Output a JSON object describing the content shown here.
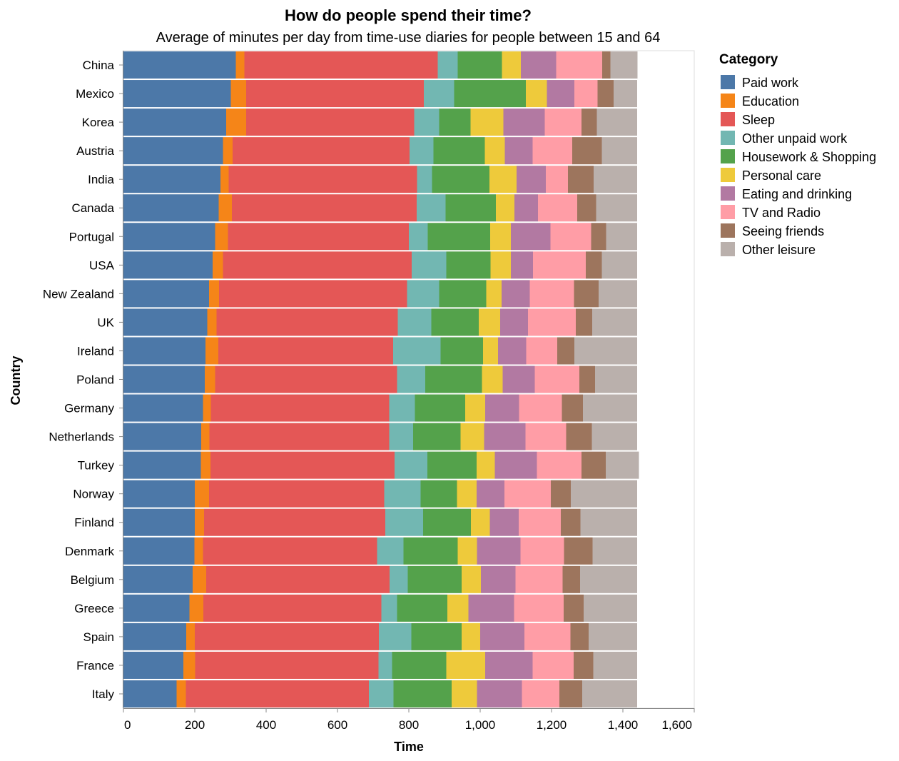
{
  "chart_data": {
    "type": "bar",
    "orientation": "horizontal",
    "stacked": true,
    "title": "How do people spend their time?",
    "subtitle": "Average of minutes per day from time-use diaries for people between 15 and 64",
    "xlabel": "Time",
    "ylabel": "Country",
    "xlim": [
      0,
      1600
    ],
    "x_ticks": [
      0,
      200,
      400,
      600,
      800,
      1000,
      1200,
      1400,
      1600
    ],
    "x_tick_labels": [
      "0",
      "200",
      "400",
      "600",
      "800",
      "1,000",
      "1,200",
      "1,400",
      "1,600"
    ],
    "grid": false,
    "legend": {
      "title": "Category",
      "position": "right"
    },
    "categories": [
      "China",
      "Mexico",
      "Korea",
      "Austria",
      "India",
      "Canada",
      "Portugal",
      "USA",
      "New Zealand",
      "UK",
      "Ireland",
      "Poland",
      "Germany",
      "Netherlands",
      "Turkey",
      "Norway",
      "Finland",
      "Denmark",
      "Belgium",
      "Greece",
      "Spain",
      "France",
      "Italy"
    ],
    "series": [
      {
        "name": "Paid work",
        "color": "#4c78a8",
        "values": [
          315,
          301,
          288,
          279,
          272,
          267,
          257,
          250,
          240,
          235,
          230,
          228,
          223,
          218,
          217,
          200,
          200,
          199,
          194,
          185,
          176,
          168,
          149
        ]
      },
      {
        "name": "Education",
        "color": "#f58518",
        "values": [
          24,
          43,
          56,
          27,
          23,
          37,
          36,
          29,
          28,
          26,
          36,
          29,
          22,
          23,
          27,
          40,
          26,
          24,
          38,
          39,
          24,
          33,
          26
        ]
      },
      {
        "name": "Sleep",
        "color": "#e45756",
        "values": [
          542,
          498,
          471,
          496,
          528,
          518,
          507,
          529,
          527,
          508,
          490,
          510,
          500,
          504,
          516,
          491,
          508,
          488,
          514,
          499,
          516,
          514,
          513
        ]
      },
      {
        "name": "Other unpaid work",
        "color": "#72b7b2",
        "values": [
          56,
          85,
          70,
          67,
          42,
          81,
          53,
          97,
          90,
          94,
          133,
          79,
          72,
          67,
          92,
          102,
          106,
          74,
          51,
          44,
          91,
          38,
          69
        ]
      },
      {
        "name": "Housework & Shopping",
        "color": "#54a24b",
        "values": [
          124,
          201,
          88,
          144,
          161,
          141,
          175,
          124,
          132,
          133,
          119,
          159,
          141,
          133,
          138,
          102,
          134,
          152,
          151,
          141,
          141,
          152,
          163
        ]
      },
      {
        "name": "Personal care",
        "color": "#eeca3b",
        "values": [
          53,
          59,
          92,
          56,
          76,
          52,
          58,
          57,
          43,
          60,
          42,
          58,
          56,
          66,
          51,
          55,
          53,
          54,
          54,
          59,
          52,
          109,
          71
        ]
      },
      {
        "name": "Eating and drinking",
        "color": "#b279a2",
        "values": [
          99,
          77,
          116,
          78,
          82,
          66,
          111,
          62,
          79,
          78,
          79,
          90,
          95,
          116,
          118,
          78,
          81,
          122,
          97,
          128,
          124,
          133,
          126
        ]
      },
      {
        "name": "TV and Radio",
        "color": "#ff9da6",
        "values": [
          129,
          65,
          103,
          111,
          62,
          110,
          114,
          148,
          124,
          134,
          87,
          125,
          120,
          114,
          125,
          130,
          118,
          122,
          132,
          139,
          129,
          115,
          105
        ]
      },
      {
        "name": "Seeing friends",
        "color": "#9d755d",
        "values": [
          23,
          45,
          43,
          83,
          72,
          53,
          42,
          45,
          69,
          46,
          48,
          44,
          59,
          72,
          68,
          56,
          55,
          80,
          49,
          56,
          51,
          55,
          64
        ]
      },
      {
        "name": "Other leisure",
        "color": "#bab0ac",
        "values": [
          76,
          66,
          113,
          99,
          122,
          115,
          87,
          99,
          108,
          126,
          176,
          118,
          152,
          127,
          93,
          186,
          159,
          125,
          160,
          150,
          136,
          123,
          154
        ]
      }
    ]
  }
}
